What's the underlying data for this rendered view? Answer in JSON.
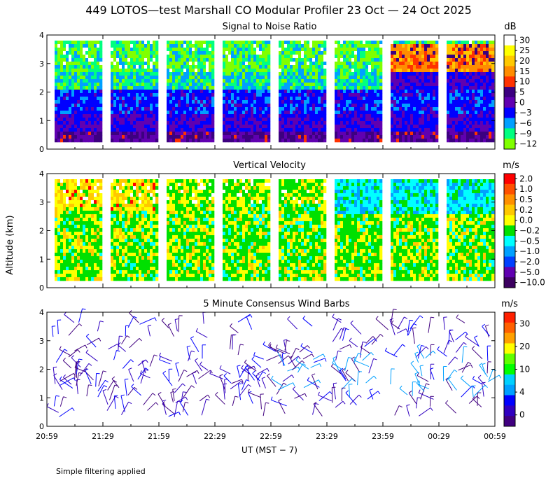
{
  "title": "449 LOTOS—test Marshall CO Modular Profiler 23 Oct — 24 Oct 2025",
  "ylabel": "Altitude (km)",
  "xlabel": "UT  (MST − 7)",
  "footnote": "Simple filtering applied",
  "x_ticks": [
    "20:59",
    "21:29",
    "21:59",
    "22:29",
    "22:59",
    "23:29",
    "23:59",
    "00:29",
    "00:59"
  ],
  "y_ticks": [
    "0",
    "1",
    "2",
    "3",
    "4"
  ],
  "chart_data": [
    {
      "type": "heatmap",
      "title": "Signal to Noise Ratio",
      "units": "dB",
      "ylim": [
        0,
        4
      ],
      "altitude_range_km": [
        0.3,
        4.0
      ],
      "time_range": [
        "20:59",
        "00:59"
      ],
      "colorbar": {
        "ticks": [
          "30",
          "25",
          "20",
          "15",
          "10",
          "5",
          "0",
          "−3",
          "−6",
          "−9",
          "−12"
        ],
        "colors": [
          "#ffffff",
          "#ffff00",
          "#ffc800",
          "#ff8c00",
          "#ff3200",
          "#3c0080",
          "#6000b0",
          "#0000ff",
          "#00a0ff",
          "#00ff80",
          "#80ff00"
        ]
      },
      "notes": "Low SNR (-12 to -6 dB) above ~2 km, high SNR (10-20 dB) near 3-3.5 km after 23:59"
    },
    {
      "type": "heatmap",
      "title": "Vertical Velocity",
      "units": "m/s",
      "ylim": [
        0,
        4
      ],
      "altitude_range_km": [
        0.3,
        4.0
      ],
      "time_range": [
        "20:59",
        "00:59"
      ],
      "colorbar": {
        "ticks": [
          "2.0",
          "1.0",
          "0.5",
          "0.2",
          "0.0",
          "−0.2",
          "−0.5",
          "−1.0",
          "−2.0",
          "−5.0",
          "−10.0"
        ],
        "colors": [
          "#ff0000",
          "#ff5000",
          "#ff9000",
          "#ffc800",
          "#ffff00",
          "#00e000",
          "#00ffff",
          "#00a0ff",
          "#0040ff",
          "#6000b0",
          "#3c0060"
        ]
      },
      "notes": "Mostly 0.0 to -0.5 m/s; updrafts (0.2-1.0) near 2.5-4 km early; downward -0.5 to -1.0 aloft after 23:59"
    },
    {
      "type": "scatter",
      "title": "5 Minute Consensus Wind Barbs",
      "units": "m/s",
      "ylim": [
        0,
        4
      ],
      "time_range": [
        "20:59",
        "00:59"
      ],
      "colorbar": {
        "ticks": [
          "30",
          "20",
          "10",
          "4",
          "0"
        ],
        "colors": [
          "#ff2000",
          "#ff6000",
          "#ffa000",
          "#ffff00",
          "#60ff00",
          "#00ff00",
          "#00d0ff",
          "#00a0ff",
          "#0000ff",
          "#3000c0",
          "#400080"
        ]
      },
      "notes": "Winds mostly 0-10 m/s (dark blue/purple), light blue 4-10 m/s near 1.5-2.5 km late"
    }
  ]
}
